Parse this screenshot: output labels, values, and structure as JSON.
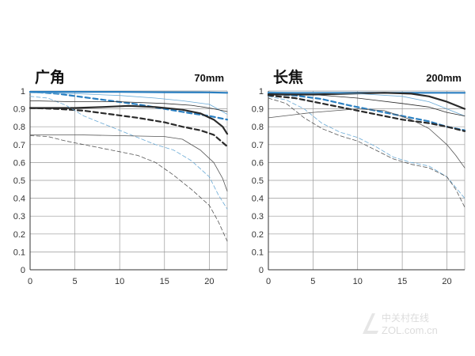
{
  "watermark": {
    "line1": "中关村在线",
    "line2": "ZOL.com.cn"
  },
  "chart_data": [
    {
      "type": "line",
      "title": "广角",
      "subtitle": "70mm",
      "xlim": [
        0,
        22
      ],
      "ylim": [
        0,
        1
      ],
      "x_ticks": [
        0,
        5,
        10,
        15,
        20
      ],
      "y_ticks": [
        0,
        0.1,
        0.2,
        0.3,
        0.4,
        0.5,
        0.6,
        0.7,
        0.8,
        0.9,
        1
      ],
      "grid": true,
      "series": [
        {
          "color": "#2a7fc1",
          "dash": "solid",
          "weight": "thick",
          "points": [
            [
              0,
              0.995
            ],
            [
              5,
              0.995
            ],
            [
              10,
              0.995
            ],
            [
              15,
              0.993
            ],
            [
              20,
              0.992
            ],
            [
              22,
              0.99
            ]
          ]
        },
        {
          "color": "#2a7fc1",
          "dash": "dashed",
          "weight": "thick",
          "points": [
            [
              0,
              0.995
            ],
            [
              3,
              0.985
            ],
            [
              6,
              0.965
            ],
            [
              9,
              0.945
            ],
            [
              12,
              0.925
            ],
            [
              15,
              0.9
            ],
            [
              18,
              0.875
            ],
            [
              20,
              0.86
            ],
            [
              22,
              0.84
            ]
          ]
        },
        {
          "color": "#2a2a2a",
          "dash": "solid",
          "weight": "thick",
          "points": [
            [
              0,
              0.905
            ],
            [
              5,
              0.905
            ],
            [
              8,
              0.91
            ],
            [
              11,
              0.917
            ],
            [
              14,
              0.91
            ],
            [
              17,
              0.895
            ],
            [
              19,
              0.875
            ],
            [
              20.5,
              0.84
            ],
            [
              21.5,
              0.8
            ],
            [
              22,
              0.76
            ]
          ]
        },
        {
          "color": "#2a2a2a",
          "dash": "dashed",
          "weight": "thick",
          "points": [
            [
              0,
              0.905
            ],
            [
              3,
              0.9
            ],
            [
              6,
              0.89
            ],
            [
              9,
              0.87
            ],
            [
              12,
              0.85
            ],
            [
              15,
              0.825
            ],
            [
              17,
              0.8
            ],
            [
              19,
              0.78
            ],
            [
              20.5,
              0.755
            ],
            [
              22,
              0.69
            ]
          ]
        },
        {
          "color": "#6aaad6",
          "dash": "solid",
          "weight": "thin",
          "points": [
            [
              0,
              0.99
            ],
            [
              5,
              0.985
            ],
            [
              10,
              0.975
            ],
            [
              14,
              0.96
            ],
            [
              17,
              0.945
            ],
            [
              20,
              0.925
            ],
            [
              22,
              0.87
            ]
          ]
        },
        {
          "color": "#6aaad6",
          "dash": "dashed",
          "weight": "thin",
          "points": [
            [
              0,
              0.97
            ],
            [
              2,
              0.96
            ],
            [
              4,
              0.92
            ],
            [
              6,
              0.86
            ],
            [
              8,
              0.82
            ],
            [
              10,
              0.78
            ],
            [
              12,
              0.74
            ],
            [
              14,
              0.7
            ],
            [
              16,
              0.67
            ],
            [
              18,
              0.61
            ],
            [
              20,
              0.52
            ],
            [
              21,
              0.42
            ],
            [
              22,
              0.34
            ]
          ]
        },
        {
          "color": "#555555",
          "dash": "solid",
          "weight": "thin",
          "points": [
            [
              0,
              0.755
            ],
            [
              5,
              0.755
            ],
            [
              10,
              0.75
            ],
            [
              15,
              0.745
            ],
            [
              17,
              0.73
            ],
            [
              19,
              0.67
            ],
            [
              20.5,
              0.6
            ],
            [
              21.5,
              0.51
            ],
            [
              22,
              0.44
            ]
          ]
        },
        {
          "color": "#555555",
          "dash": "dashed",
          "weight": "thin",
          "points": [
            [
              0,
              0.75
            ],
            [
              2,
              0.745
            ],
            [
              4,
              0.72
            ],
            [
              6,
              0.7
            ],
            [
              8,
              0.68
            ],
            [
              10,
              0.66
            ],
            [
              12,
              0.64
            ],
            [
              14,
              0.6
            ],
            [
              16,
              0.53
            ],
            [
              18,
              0.45
            ],
            [
              20,
              0.36
            ],
            [
              21,
              0.27
            ],
            [
              22,
              0.16
            ]
          ]
        },
        {
          "color": "#2a2a2a",
          "dash": "solid",
          "weight": "thin",
          "points": [
            [
              0,
              0.945
            ],
            [
              5,
              0.94
            ],
            [
              10,
              0.94
            ],
            [
              15,
              0.93
            ],
            [
              18,
              0.92
            ],
            [
              20,
              0.905
            ],
            [
              22,
              0.885
            ]
          ]
        }
      ]
    },
    {
      "type": "line",
      "title": "长焦",
      "subtitle": "200mm",
      "xlim": [
        0,
        22
      ],
      "ylim": [
        0,
        1
      ],
      "x_ticks": [
        0,
        5,
        10,
        15,
        20
      ],
      "y_ticks": [
        0,
        0.1,
        0.2,
        0.3,
        0.4,
        0.5,
        0.6,
        0.7,
        0.8,
        0.9,
        1
      ],
      "grid": true,
      "series": [
        {
          "color": "#2a7fc1",
          "dash": "solid",
          "weight": "thick",
          "points": [
            [
              0,
              0.99
            ],
            [
              5,
              0.99
            ],
            [
              10,
              0.99
            ],
            [
              15,
              0.99
            ],
            [
              20,
              0.99
            ],
            [
              22,
              0.99
            ]
          ]
        },
        {
          "color": "#2a7fc1",
          "dash": "dashed",
          "weight": "thick",
          "points": [
            [
              0,
              0.985
            ],
            [
              3,
              0.975
            ],
            [
              6,
              0.955
            ],
            [
              9,
              0.92
            ],
            [
              12,
              0.89
            ],
            [
              15,
              0.86
            ],
            [
              18,
              0.83
            ],
            [
              20,
              0.8
            ],
            [
              22,
              0.78
            ]
          ]
        },
        {
          "color": "#2a2a2a",
          "dash": "solid",
          "weight": "thick",
          "points": [
            [
              0,
              0.98
            ],
            [
              5,
              0.98
            ],
            [
              9,
              0.985
            ],
            [
              13,
              0.99
            ],
            [
              16,
              0.985
            ],
            [
              18,
              0.97
            ],
            [
              20,
              0.94
            ],
            [
              22,
              0.9
            ]
          ]
        },
        {
          "color": "#2a2a2a",
          "dash": "dashed",
          "weight": "thick",
          "points": [
            [
              0,
              0.975
            ],
            [
              3,
              0.96
            ],
            [
              6,
              0.93
            ],
            [
              9,
              0.9
            ],
            [
              12,
              0.87
            ],
            [
              15,
              0.84
            ],
            [
              18,
              0.82
            ],
            [
              20,
              0.8
            ],
            [
              22,
              0.775
            ]
          ]
        },
        {
          "color": "#6aaad6",
          "dash": "solid",
          "weight": "thin",
          "points": [
            [
              0,
              0.995
            ],
            [
              5,
              0.99
            ],
            [
              10,
              0.985
            ],
            [
              15,
              0.97
            ],
            [
              18,
              0.94
            ],
            [
              20,
              0.9
            ],
            [
              22,
              0.86
            ]
          ]
        },
        {
          "color": "#6aaad6",
          "dash": "dashed",
          "weight": "thin",
          "points": [
            [
              0,
              0.97
            ],
            [
              2,
              0.95
            ],
            [
              4,
              0.9
            ],
            [
              6,
              0.82
            ],
            [
              8,
              0.77
            ],
            [
              10,
              0.74
            ],
            [
              12,
              0.69
            ],
            [
              14,
              0.63
            ],
            [
              16,
              0.6
            ],
            [
              18,
              0.58
            ],
            [
              20,
              0.52
            ],
            [
              22,
              0.4
            ]
          ]
        },
        {
          "color": "#555555",
          "dash": "solid",
          "weight": "thin",
          "points": [
            [
              0,
              0.85
            ],
            [
              5,
              0.88
            ],
            [
              10,
              0.9
            ],
            [
              13,
              0.89
            ],
            [
              16,
              0.84
            ],
            [
              18,
              0.79
            ],
            [
              20,
              0.7
            ],
            [
              21,
              0.64
            ],
            [
              22,
              0.57
            ]
          ]
        },
        {
          "color": "#555555",
          "dash": "dashed",
          "weight": "thin",
          "points": [
            [
              0,
              0.96
            ],
            [
              2,
              0.93
            ],
            [
              4,
              0.85
            ],
            [
              6,
              0.79
            ],
            [
              8,
              0.75
            ],
            [
              10,
              0.72
            ],
            [
              12,
              0.67
            ],
            [
              14,
              0.62
            ],
            [
              16,
              0.59
            ],
            [
              18,
              0.57
            ],
            [
              20,
              0.52
            ],
            [
              21,
              0.45
            ],
            [
              22,
              0.35
            ]
          ]
        },
        {
          "color": "#2a2a2a",
          "dash": "solid",
          "weight": "thin",
          "points": [
            [
              0,
              0.985
            ],
            [
              5,
              0.98
            ],
            [
              10,
              0.96
            ],
            [
              15,
              0.93
            ],
            [
              18,
              0.91
            ],
            [
              20,
              0.88
            ],
            [
              22,
              0.86
            ]
          ]
        }
      ]
    }
  ]
}
